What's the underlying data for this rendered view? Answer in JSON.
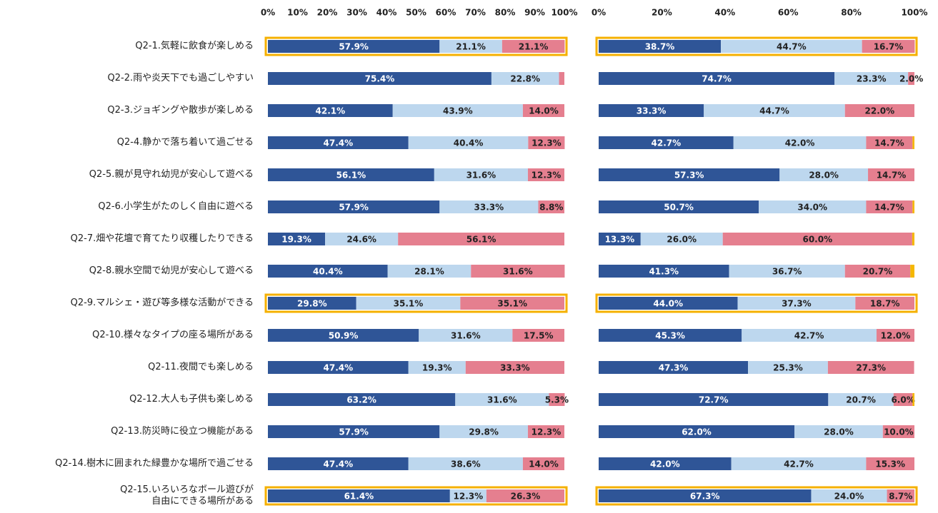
{
  "chart_data": [
    {
      "type": "stacked-bar-horizontal",
      "categories": [
        "Q2-1.気軽に飲食が楽しめる",
        "Q2-2.雨や炎天下でも過ごしやすい",
        "Q2-3.ジョギングや散歩が楽しめる",
        "Q2-4.静かで落ち着いて過ごせる",
        "Q2-5.親が見守れ幼児が安心して遊べる",
        "Q2-6.小学生がたのしく自由に遊べる",
        "Q2-7.畑や花壇で育てたり収穫したりできる",
        "Q2-8.親水空間で幼児が安心して遊べる",
        "Q2-9.マルシェ・遊び等多様な活動ができる",
        "Q2-10.様々なタイプの座る場所がある",
        "Q2-11.夜間でも楽しめる",
        "Q2-12.大人も子供も楽しめる",
        "Q2-13.防災時に役立つ機能がある",
        "Q2-14.樹木に囲まれた緑豊かな場所で過ごせる",
        "Q2-15.いろいろなボール遊びが\n自由にできる場所がある"
      ],
      "xlim": [
        0,
        100
      ],
      "xticks": [
        {
          "value": 0,
          "label": "0%"
        },
        {
          "value": 10,
          "label": "10%"
        },
        {
          "value": 20,
          "label": "20%"
        },
        {
          "value": 30,
          "label": "30%"
        },
        {
          "value": 40,
          "label": "40%"
        },
        {
          "value": 50,
          "label": "50%"
        },
        {
          "value": 60,
          "label": "60%"
        },
        {
          "value": 70,
          "label": "70%"
        },
        {
          "value": 80,
          "label": "80%"
        },
        {
          "value": 90,
          "label": "90%"
        },
        {
          "value": 100,
          "label": "100%"
        }
      ],
      "series": [
        {
          "color": "#2f5597",
          "values": [
            57.9,
            75.4,
            42.1,
            47.4,
            56.1,
            57.9,
            19.3,
            40.4,
            29.8,
            50.9,
            47.4,
            63.2,
            57.9,
            47.4,
            61.4
          ],
          "value_labels": [
            "57.9%",
            "75.4%",
            "42.1%",
            "47.4%",
            "56.1%",
            "57.9%",
            "19.3%",
            "40.4%",
            "29.8%",
            "50.9%",
            "47.4%",
            "63.2%",
            "57.9%",
            "47.4%",
            "61.4%"
          ]
        },
        {
          "color": "#bdd7ee",
          "values": [
            21.1,
            22.8,
            43.9,
            40.4,
            31.6,
            33.3,
            24.6,
            28.1,
            35.1,
            31.6,
            19.3,
            31.6,
            29.8,
            38.6,
            12.3
          ],
          "value_labels": [
            "21.1%",
            "22.8%",
            "43.9%",
            "40.4%",
            "31.6%",
            "33.3%",
            "24.6%",
            "28.1%",
            "35.1%",
            "31.6%",
            "19.3%",
            "31.6%",
            "29.8%",
            "38.6%",
            "12.3%"
          ]
        },
        {
          "color": "#e57f8f",
          "values": [
            21.1,
            1.8,
            14.0,
            12.3,
            12.3,
            8.8,
            56.1,
            31.6,
            35.1,
            17.5,
            33.3,
            5.3,
            12.3,
            14.0,
            26.3
          ],
          "value_labels": [
            "21.1%",
            null,
            "14.0%",
            "12.3%",
            "12.3%",
            "8.8%",
            "56.1%",
            "31.6%",
            "35.1%",
            "17.5%",
            "33.3%",
            "5.3%",
            "12.3%",
            "14.0%",
            "26.3%"
          ]
        }
      ]
    },
    {
      "type": "stacked-bar-horizontal",
      "xlim": [
        0,
        100
      ],
      "xticks": [
        {
          "value": 0,
          "label": "0%"
        },
        {
          "value": 20,
          "label": "20%"
        },
        {
          "value": 40,
          "label": "40%"
        },
        {
          "value": 60,
          "label": "60%"
        },
        {
          "value": 80,
          "label": "80%"
        },
        {
          "value": 100,
          "label": "100%"
        }
      ],
      "series": [
        {
          "color": "#2f5597",
          "values": [
            38.7,
            74.7,
            33.3,
            42.7,
            57.3,
            50.7,
            13.3,
            41.3,
            44.0,
            45.3,
            47.3,
            72.7,
            62.0,
            42.0,
            67.3
          ],
          "value_labels": [
            "38.7%",
            "74.7%",
            "33.3%",
            "42.7%",
            "57.3%",
            "50.7%",
            "13.3%",
            "41.3%",
            "44.0%",
            "45.3%",
            "47.3%",
            "72.7%",
            "62.0%",
            "42.0%",
            "67.3%"
          ]
        },
        {
          "color": "#bdd7ee",
          "values": [
            44.7,
            23.3,
            44.7,
            42.0,
            28.0,
            34.0,
            26.0,
            36.7,
            37.3,
            42.7,
            25.3,
            20.7,
            28.0,
            42.7,
            24.0
          ],
          "value_labels": [
            "44.7%",
            "23.3%",
            "44.7%",
            "42.0%",
            "28.0%",
            "34.0%",
            "26.0%",
            "36.7%",
            "37.3%",
            "42.7%",
            "25.3%",
            "20.7%",
            "28.0%",
            "42.7%",
            "24.0%"
          ]
        },
        {
          "color": "#e57f8f",
          "values": [
            16.7,
            2.0,
            22.0,
            14.7,
            14.7,
            14.7,
            60.0,
            20.7,
            18.7,
            12.0,
            27.3,
            6.0,
            10.0,
            15.3,
            8.7
          ],
          "value_labels": [
            "16.7%",
            "2.0%",
            "22.0%",
            "14.7%",
            "14.7%",
            "14.7%",
            "60.0%",
            "20.7%",
            "18.7%",
            "12.0%",
            "27.3%",
            "6.0%",
            "10.0%",
            "15.3%",
            "8.7%"
          ]
        },
        {
          "color": "#f5b800",
          "values": [
            0,
            0,
            0,
            0.6,
            0,
            0.6,
            0.7,
            1.3,
            0,
            0,
            0,
            0.6,
            0,
            0,
            0
          ]
        }
      ]
    }
  ]
}
